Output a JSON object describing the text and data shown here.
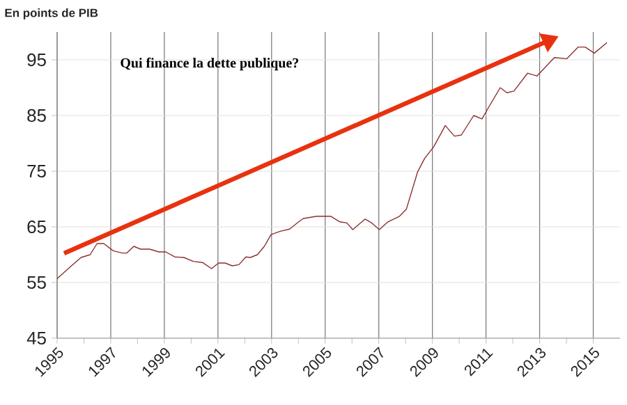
{
  "chart_data": {
    "type": "line",
    "title": "Qui finance la dette publique?",
    "ylabel": "En points de PIB",
    "x": [
      1995.0,
      1995.46,
      1995.89,
      1996.23,
      1996.49,
      1996.74,
      1997.09,
      1997.43,
      1997.6,
      1997.86,
      1998.11,
      1998.45,
      1998.79,
      1999.05,
      1999.39,
      1999.73,
      2000.08,
      2000.42,
      2000.76,
      2001.02,
      2001.27,
      2001.53,
      2001.78,
      2002.04,
      2002.21,
      2002.47,
      2002.73,
      2002.98,
      2003.32,
      2003.67,
      2004.01,
      2004.18,
      2004.69,
      2005.21,
      2005.55,
      2005.81,
      2006.03,
      2006.49,
      2006.74,
      2007.02,
      2007.34,
      2007.77,
      2008.03,
      2008.45,
      2008.71,
      2009.05,
      2009.48,
      2009.82,
      2010.08,
      2010.54,
      2010.85,
      2011.1,
      2011.53,
      2011.78,
      2012.04,
      2012.55,
      2012.9,
      2013.55,
      2014.01,
      2014.44,
      2014.7,
      2015.04,
      2015.51
    ],
    "series": [
      {
        "color": "#8b2f2f",
        "values": [
          55.7,
          57.7,
          59.5,
          60.0,
          62.0,
          62.0,
          60.7,
          60.3,
          60.3,
          61.5,
          61.0,
          61.0,
          60.5,
          60.5,
          59.6,
          59.5,
          58.8,
          58.6,
          57.5,
          58.5,
          58.5,
          58.0,
          58.2,
          59.6,
          59.5,
          60.0,
          61.5,
          63.6,
          64.2,
          64.6,
          65.9,
          66.5,
          66.9,
          66.9,
          65.9,
          65.7,
          64.5,
          66.4,
          65.7,
          64.5,
          65.9,
          66.9,
          68.2,
          74.9,
          77.3,
          79.4,
          83.2,
          81.3,
          81.5,
          85.0,
          84.4,
          86.5,
          90.0,
          89.1,
          89.4,
          92.6,
          92.1,
          95.4,
          95.2,
          97.3,
          97.3,
          96.2,
          98.1
        ]
      }
    ],
    "xlim": [
      1995,
      2016
    ],
    "ylim": [
      45,
      100
    ],
    "xticks": [
      1995,
      {
        "value": 1996,
        "label": null
      },
      1997,
      {
        "value": 1998,
        "label": null
      },
      1999,
      {
        "value": 2000,
        "label": null
      },
      2001,
      {
        "value": 2002,
        "label": null
      },
      2003,
      {
        "value": 2004,
        "label": null
      },
      2005,
      {
        "value": 2006,
        "label": null
      },
      2007,
      {
        "value": 2008,
        "label": null
      },
      2009,
      {
        "value": 2010,
        "label": null
      },
      2011,
      {
        "value": 2012,
        "label": null
      },
      2013,
      {
        "value": 2014,
        "label": null
      },
      2015
    ],
    "yticks": [
      45,
      55,
      65,
      75,
      85,
      95
    ],
    "grid": true,
    "marker": "none",
    "line_style": "solid"
  }
}
